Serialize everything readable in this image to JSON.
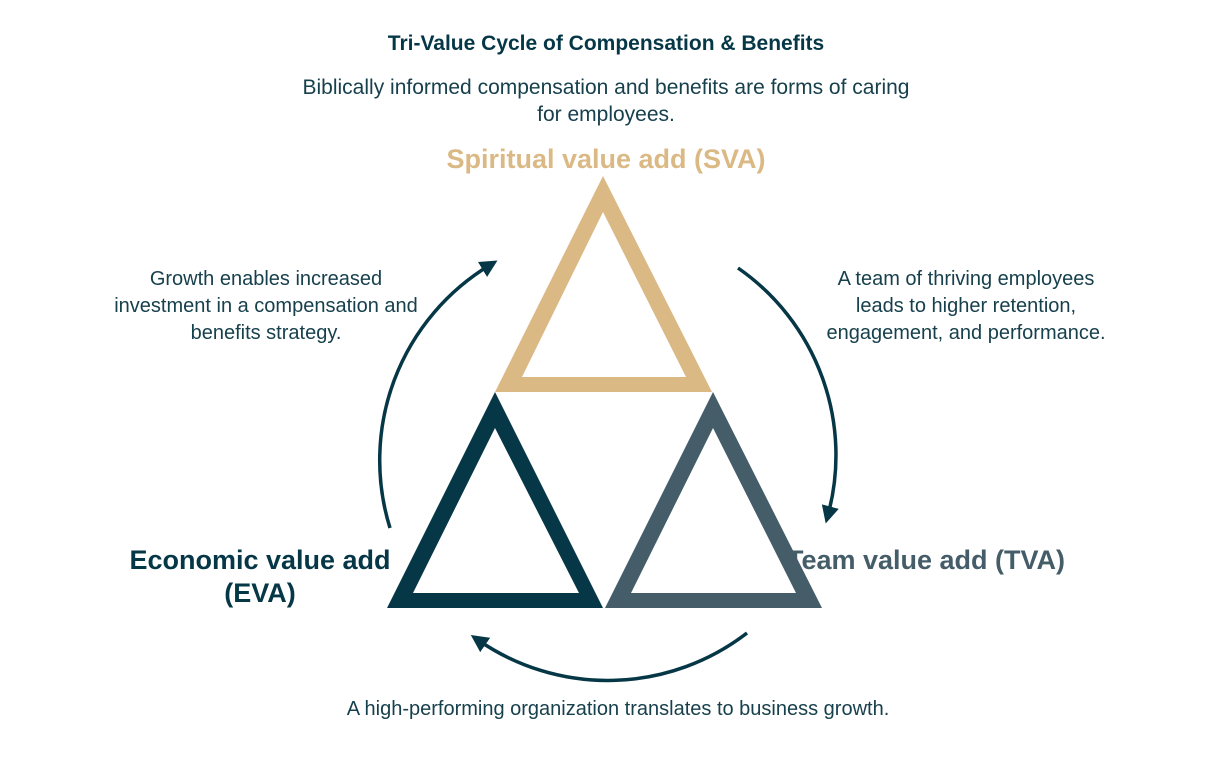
{
  "title": "Tri-Value Cycle of Compensation & Benefits",
  "subtitle": "Biblically informed compensation and benefits are forms of caring for employees.",
  "nodes": {
    "sva": {
      "label": "Spiritual value add (SVA)",
      "color": "#dbb985"
    },
    "eva": {
      "label": "Economic value add (EVA)",
      "color": "#063746"
    },
    "tva": {
      "label": "Team value add (TVA)",
      "color": "#445d69"
    }
  },
  "edges": {
    "eva_to_sva": "Growth enables increased investment in a compensation and benefits strategy.",
    "sva_to_tva": "A team of thriving employees leads to higher retention, engagement, and performance.",
    "tva_to_eva": "A high-performing organization translates to business growth."
  },
  "arrow_color": "#063746"
}
